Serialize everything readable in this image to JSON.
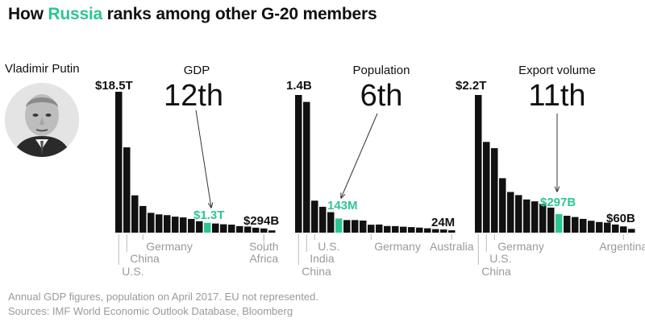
{
  "title": {
    "prefix": "How ",
    "highlight": "Russia",
    "suffix": " ranks among other G-20 members"
  },
  "person": {
    "name": "Vladimir Putin"
  },
  "footnotes": [
    "Annual GDP figures, population on April 2017. EU not represented.",
    "Sources: IMF World Economic Outlook Database, Bloomberg"
  ],
  "colors": {
    "bar": "#111111",
    "highlight": "#2ec68f",
    "label_gray": "#9a9a9a"
  },
  "chart_data": [
    {
      "type": "bar",
      "metric": "GDP",
      "rank_label": "12th",
      "top_label": "$18.5T",
      "highlight_label": "$1.3T",
      "last_label": "$294B",
      "highlight_index": 11,
      "values": [
        18.5,
        11.2,
        4.9,
        3.5,
        2.6,
        2.4,
        2.3,
        2.1,
        2.0,
        1.8,
        1.5,
        1.3,
        1.2,
        1.1,
        1.05,
        0.86,
        0.8,
        0.65,
        0.55,
        0.294
      ],
      "ymax": 18.5,
      "units": "USD trillions",
      "country_labels": [
        {
          "text": "U.S.",
          "bar": 0,
          "line": 1
        },
        {
          "text": "China",
          "bar": 1,
          "line": 0
        },
        {
          "text": "Germany",
          "bar": 3,
          "line": -1
        },
        {
          "text": "South",
          "bar": 18,
          "line": -1
        },
        {
          "text": "Africa",
          "bar": 18,
          "line": 0
        }
      ]
    },
    {
      "type": "bar",
      "metric": "Population",
      "rank_label": "6th",
      "top_label": "1.4B",
      "highlight_label": "143M",
      "last_label": "24M",
      "highlight_index": 5,
      "values": [
        1.39,
        1.32,
        0.323,
        0.261,
        0.207,
        0.143,
        0.127,
        0.127,
        0.122,
        0.08,
        0.082,
        0.067,
        0.066,
        0.06,
        0.056,
        0.051,
        0.044,
        0.036,
        0.032,
        0.024
      ],
      "ymax": 1.39,
      "units": "billions of people",
      "country_labels": [
        {
          "text": "China",
          "bar": 0,
          "line": 1
        },
        {
          "text": "India",
          "bar": 1,
          "line": 0
        },
        {
          "text": "U.S.",
          "bar": 2,
          "line": -1
        },
        {
          "text": "Germany",
          "bar": 9,
          "line": -1
        },
        {
          "text": "Australia",
          "bar": 19,
          "line": -1
        }
      ]
    },
    {
      "type": "bar",
      "metric": "Export volume",
      "rank_label": "11th",
      "top_label": "$2.2T",
      "highlight_label": "$297B",
      "last_label": "$60B",
      "highlight_index": 10,
      "values": [
        2.2,
        1.45,
        1.35,
        0.87,
        0.65,
        0.6,
        0.53,
        0.5,
        0.46,
        0.4,
        0.297,
        0.27,
        0.25,
        0.22,
        0.19,
        0.17,
        0.16,
        0.13,
        0.1,
        0.06
      ],
      "ymax": 2.2,
      "units": "USD trillions",
      "country_labels": [
        {
          "text": "Germany",
          "bar": 2,
          "line": -1
        },
        {
          "text": "U.S.",
          "bar": 1,
          "line": 0
        },
        {
          "text": "China",
          "bar": 0,
          "line": 1
        },
        {
          "text": "Argentina",
          "bar": 18,
          "line": -1
        }
      ]
    }
  ]
}
